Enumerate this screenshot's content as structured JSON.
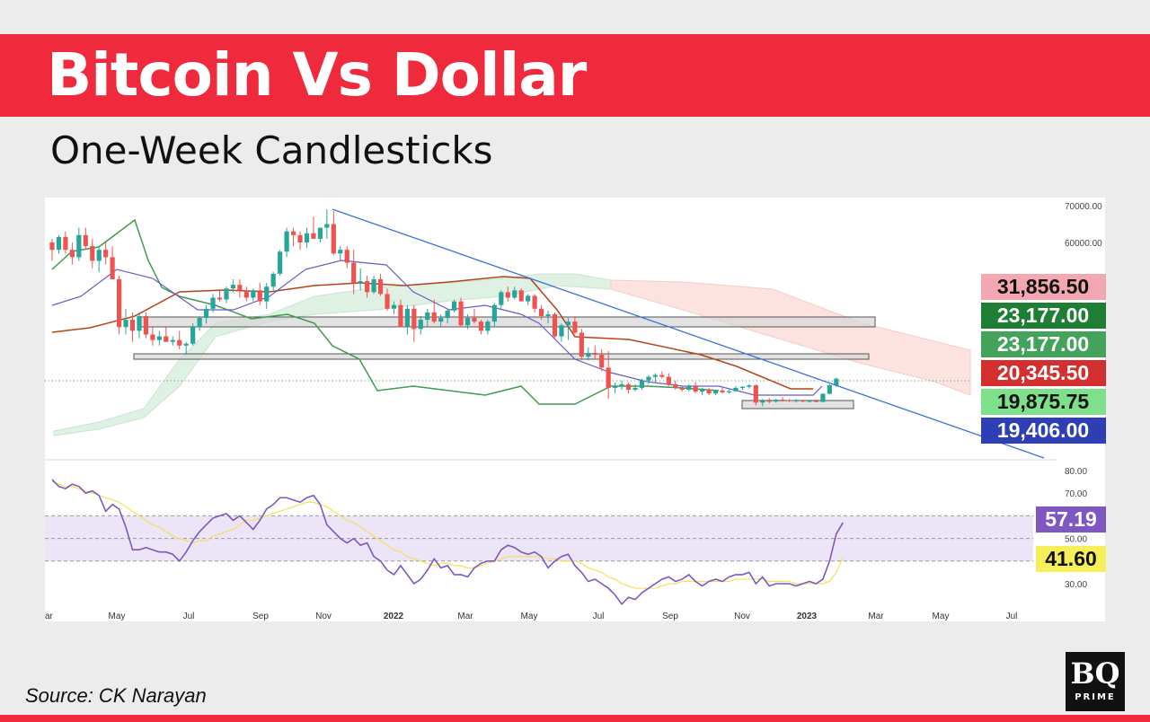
{
  "header": {
    "title": "Bitcoin Vs Dollar",
    "subtitle": "One-Week Candlesticks"
  },
  "footer": {
    "source": "Source: CK Narayan",
    "logo_main": "BQ",
    "logo_sub": "PRIME"
  },
  "colors": {
    "banner": "#ef2a3c",
    "candle_up": "#26a69a",
    "candle_down": "#ef5350",
    "trendline": "#3b6fd8",
    "rsi_line": "#7e57c2",
    "rsi_ma": "#f5e05a",
    "rsi_band": "#ece4f7"
  },
  "chart_data": [
    {
      "type": "candlestick",
      "x_ticks": [
        "ar",
        "May",
        "Jul",
        "Sep",
        "Nov",
        "2022",
        "Mar",
        "May",
        "Jul",
        "Sep",
        "Nov",
        "2023",
        "Mar",
        "May",
        "Jul"
      ],
      "y_ticks": [
        "70000.00",
        "60000.00"
      ],
      "price_labels": [
        {
          "value": "31,856.50",
          "color": "#f2a7b2",
          "text_color": "#111111"
        },
        {
          "value": "23,177.00",
          "color": "#1e7e34",
          "text_color": "#ffffff"
        },
        {
          "value": "23,177.00",
          "color": "#43a35b",
          "text_color": "#ffffff"
        },
        {
          "value": "20,345.50",
          "color": "#d32f2f",
          "text_color": "#ffffff"
        },
        {
          "value": "19,875.75",
          "color": "#7ee08a",
          "text_color": "#111111"
        },
        {
          "value": "19,406.00",
          "color": "#2d3fb3",
          "text_color": "#ffffff"
        }
      ],
      "candles": [
        [
          60000,
          61000,
          55000,
          58000
        ],
        [
          58000,
          62000,
          57000,
          61500
        ],
        [
          61500,
          63000,
          57000,
          58000
        ],
        [
          58000,
          60000,
          54000,
          56000
        ],
        [
          56000,
          64000,
          55000,
          62000
        ],
        [
          62000,
          64000,
          58000,
          59000
        ],
        [
          59000,
          61000,
          53000,
          55000
        ],
        [
          55000,
          59000,
          52000,
          58000
        ],
        [
          58000,
          60000,
          54000,
          56000
        ],
        [
          56000,
          59000,
          50000,
          50000
        ],
        [
          50000,
          51000,
          35000,
          37000
        ],
        [
          37000,
          42000,
          35000,
          39000
        ],
        [
          39000,
          41000,
          33000,
          36000
        ],
        [
          36000,
          41000,
          34000,
          40000
        ],
        [
          40000,
          41000,
          34000,
          35000
        ],
        [
          35000,
          37000,
          32000,
          33500
        ],
        [
          33500,
          36000,
          32000,
          34500
        ],
        [
          34500,
          37000,
          33000,
          33000
        ],
        [
          33000,
          34500,
          32000,
          33500
        ],
        [
          33500,
          36000,
          31000,
          32000
        ],
        [
          32000,
          33000,
          29500,
          32500
        ],
        [
          32500,
          38000,
          32000,
          37000
        ],
        [
          37000,
          40000,
          36000,
          39500
        ],
        [
          39500,
          43000,
          38000,
          42000
        ],
        [
          42000,
          46000,
          41000,
          45000
        ],
        [
          45000,
          47000,
          44000,
          44500
        ],
        [
          44500,
          48000,
          43500,
          47500
        ],
        [
          47500,
          50000,
          46500,
          48500
        ],
        [
          48500,
          50000,
          45000,
          47000
        ],
        [
          47000,
          48000,
          44000,
          45000
        ],
        [
          45000,
          47500,
          44000,
          47000
        ],
        [
          47000,
          49000,
          43000,
          44000
        ],
        [
          44000,
          49000,
          42000,
          48000
        ],
        [
          48000,
          52000,
          47000,
          51500
        ],
        [
          51500,
          58000,
          51000,
          57500
        ],
        [
          57500,
          64000,
          56000,
          63000
        ],
        [
          63000,
          64000,
          59000,
          62000
        ],
        [
          62000,
          63000,
          58000,
          60000
        ],
        [
          60000,
          64000,
          58500,
          62500
        ],
        [
          62500,
          67000,
          61000,
          61000
        ],
        [
          61000,
          64000,
          60000,
          64000
        ],
        [
          64000,
          69000,
          61000,
          65000
        ],
        [
          65000,
          68500,
          56500,
          57000
        ],
        [
          57000,
          59000,
          55000,
          58000
        ],
        [
          58000,
          59000,
          53000,
          54500
        ],
        [
          54500,
          58000,
          46000,
          49000
        ],
        [
          49000,
          53000,
          47000,
          49500
        ],
        [
          49500,
          51000,
          45000,
          46500
        ],
        [
          46500,
          51000,
          46000,
          50000
        ],
        [
          50000,
          51500,
          45500,
          46000
        ],
        [
          46000,
          47500,
          41500,
          42000
        ],
        [
          42000,
          44000,
          40500,
          43000
        ],
        [
          43000,
          44500,
          37000,
          37000
        ],
        [
          37000,
          43000,
          35000,
          42000
        ],
        [
          42000,
          43000,
          33000,
          36500
        ],
        [
          36500,
          40000,
          35000,
          39000
        ],
        [
          39000,
          42000,
          37000,
          41000
        ],
        [
          41000,
          44500,
          38000,
          38500
        ],
        [
          38500,
          40500,
          37000,
          39500
        ],
        [
          39500,
          42000,
          38000,
          41500
        ],
        [
          41500,
          44500,
          41000,
          44000
        ],
        [
          44000,
          45000,
          37000,
          37500
        ],
        [
          37500,
          40500,
          36500,
          39500
        ],
        [
          39500,
          42000,
          38000,
          38500
        ],
        [
          38500,
          39000,
          35000,
          36000
        ],
        [
          36000,
          39000,
          35000,
          38500
        ],
        [
          38500,
          43500,
          37000,
          43000
        ],
        [
          43000,
          47000,
          42000,
          46500
        ],
        [
          46500,
          48000,
          44000,
          45000
        ],
        [
          45000,
          48000,
          44500,
          47000
        ],
        [
          47000,
          47500,
          44000,
          44000
        ],
        [
          44000,
          46000,
          43000,
          45500
        ],
        [
          45500,
          46000,
          41000,
          42000
        ],
        [
          42000,
          43000,
          39000,
          40000
        ],
        [
          40000,
          41500,
          38000,
          40500
        ],
        [
          40500,
          41000,
          34000,
          34500
        ],
        [
          34500,
          38000,
          33000,
          37500
        ],
        [
          37500,
          39500,
          33500,
          38500
        ],
        [
          38500,
          40000,
          35000,
          35500
        ],
        [
          35500,
          36500,
          28000,
          29000
        ],
        [
          29000,
          31500,
          28000,
          30000
        ],
        [
          30000,
          32000,
          28500,
          29500
        ],
        [
          29500,
          31000,
          25000,
          26000
        ],
        [
          26000,
          30500,
          17500,
          20500
        ],
        [
          20500,
          22000,
          19000,
          21000
        ],
        [
          21000,
          22500,
          20000,
          21500
        ],
        [
          21500,
          22000,
          19000,
          20000
        ],
        [
          20000,
          21500,
          19500,
          20500
        ],
        [
          20500,
          23000,
          20000,
          22500
        ],
        [
          22500,
          24000,
          21500,
          23500
        ],
        [
          23500,
          24500,
          22000,
          24000
        ],
        [
          24000,
          25000,
          23000,
          23500
        ],
        [
          23500,
          24500,
          21000,
          21500
        ],
        [
          21500,
          22500,
          20000,
          20500
        ],
        [
          20500,
          21000,
          19500,
          20000
        ],
        [
          20000,
          21500,
          19500,
          21000
        ],
        [
          21000,
          22000,
          19000,
          19500
        ],
        [
          19500,
          20500,
          18500,
          20000
        ],
        [
          20000,
          20500,
          18500,
          19000
        ],
        [
          19000,
          20000,
          18500,
          19800
        ],
        [
          19800,
          20500,
          19000,
          19300
        ],
        [
          19300,
          20000,
          19000,
          19600
        ],
        [
          19600,
          21000,
          19400,
          20500
        ],
        [
          20500,
          21000,
          20000,
          20800
        ],
        [
          20800,
          21500,
          20300,
          21200
        ],
        [
          21200,
          21500,
          15700,
          16500
        ],
        [
          16500,
          17500,
          15500,
          17000
        ],
        [
          17000,
          17800,
          16300,
          16800
        ],
        [
          16800,
          17500,
          16500,
          17300
        ],
        [
          17300,
          18000,
          16800,
          17200
        ],
        [
          17200,
          17500,
          16700,
          16900
        ],
        [
          16900,
          17500,
          16500,
          17100
        ],
        [
          17100,
          17300,
          16600,
          16800
        ],
        [
          16800,
          17200,
          16500,
          17000
        ],
        [
          17000,
          17300,
          16600,
          16700
        ],
        [
          16700,
          19000,
          16600,
          18900
        ],
        [
          18900,
          21500,
          18800,
          21200
        ],
        [
          21200,
          23300,
          20800,
          23000
        ]
      ]
    },
    {
      "type": "line",
      "name": "RSI",
      "y_ticks": [
        "80.00",
        "70.00",
        "50.00",
        "30.00"
      ],
      "band": [
        40,
        60
      ],
      "value_labels": [
        {
          "value": "57.19",
          "color": "#7e57c2",
          "text_color": "#ffffff"
        },
        {
          "value": "41.60",
          "color": "#f5f05a",
          "text_color": "#111111"
        }
      ],
      "rsi": [
        76,
        73,
        72,
        74,
        73,
        70,
        71,
        69,
        62,
        65,
        63,
        55,
        45,
        45,
        46,
        45,
        44,
        44,
        43,
        40,
        44,
        49,
        53,
        56,
        59,
        60,
        61,
        58,
        60,
        57,
        54,
        58,
        63,
        65,
        68,
        68,
        67,
        66,
        68,
        69,
        65,
        56,
        53,
        50,
        48,
        50,
        47,
        48,
        42,
        40,
        36,
        34,
        38,
        34,
        30,
        32,
        36,
        41,
        37,
        38,
        34,
        34,
        33,
        37,
        39,
        40,
        40,
        45,
        47,
        46,
        44,
        43,
        44,
        42,
        37,
        40,
        42,
        43,
        38,
        35,
        31,
        32,
        30,
        28,
        25,
        21,
        24,
        23,
        26,
        28,
        30,
        32,
        33,
        31,
        32,
        34,
        31,
        29,
        31,
        32,
        31,
        33,
        34,
        34,
        35,
        30,
        33,
        29,
        30,
        30,
        30,
        29,
        30,
        31,
        30,
        32,
        40,
        52,
        57
      ],
      "ma": [
        75,
        74,
        73,
        73,
        72,
        71,
        70,
        69,
        68,
        67,
        66,
        64,
        62,
        60,
        58,
        56,
        55,
        53,
        51,
        50,
        49,
        48,
        49,
        49,
        51,
        52,
        53,
        54,
        56,
        58,
        58,
        59,
        60,
        61,
        62,
        63,
        64,
        65,
        66,
        66,
        65,
        64,
        62,
        60,
        58,
        57,
        55,
        53,
        51,
        49,
        47,
        45,
        44,
        42,
        41,
        40,
        39,
        38,
        39,
        39,
        38,
        38,
        37,
        37,
        38,
        39,
        40,
        41,
        42,
        42,
        42,
        42,
        42,
        42,
        41,
        41,
        40,
        40,
        40,
        39,
        37,
        36,
        35,
        33,
        32,
        30,
        29,
        28,
        28,
        28,
        28,
        29,
        30,
        30,
        31,
        31,
        31,
        31,
        31,
        31,
        31,
        31,
        32,
        32,
        32,
        32,
        32,
        31,
        31,
        31,
        31,
        30,
        30,
        30,
        30,
        30,
        31,
        35,
        41.6
      ]
    }
  ]
}
